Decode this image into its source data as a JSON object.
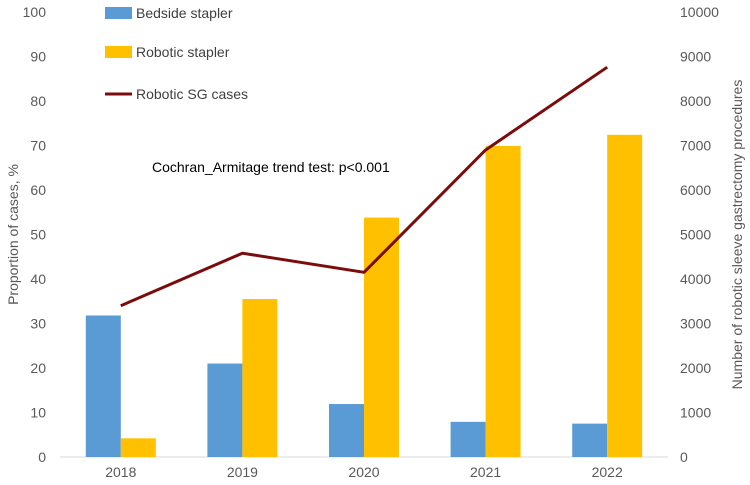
{
  "chart_data": {
    "type": "bar+line",
    "categories": [
      "2018",
      "2019",
      "2020",
      "2021",
      "2022"
    ],
    "series": [
      {
        "name": "Bedside stapler",
        "type": "bar",
        "axis": "left",
        "color": "#5B9BD5",
        "values": [
          31.8,
          21.0,
          11.9,
          7.9,
          7.5
        ]
      },
      {
        "name": "Robotic stapler",
        "type": "bar",
        "axis": "left",
        "color": "#FFC000",
        "values": [
          4.2,
          35.5,
          53.8,
          69.9,
          72.4
        ]
      },
      {
        "name": "Robotic SG cases",
        "type": "line",
        "axis": "right",
        "color": "#7B0C0C",
        "values": [
          3400,
          4580,
          4150,
          6900,
          8760
        ]
      }
    ],
    "ylabel": "Proportion of cases, %",
    "y2label": "Number of robotic sleeve gastrectomy procedures",
    "ylim": [
      0,
      100
    ],
    "y2lim": [
      0,
      10000
    ],
    "yticks": [
      0,
      10,
      20,
      30,
      40,
      50,
      60,
      70,
      80,
      90,
      100
    ],
    "y2ticks": [
      0,
      1000,
      2000,
      3000,
      4000,
      5000,
      6000,
      7000,
      8000,
      9000,
      10000
    ],
    "annotation": "Cochran_Armitage trend test: p<0.001",
    "legend": "top-left"
  }
}
